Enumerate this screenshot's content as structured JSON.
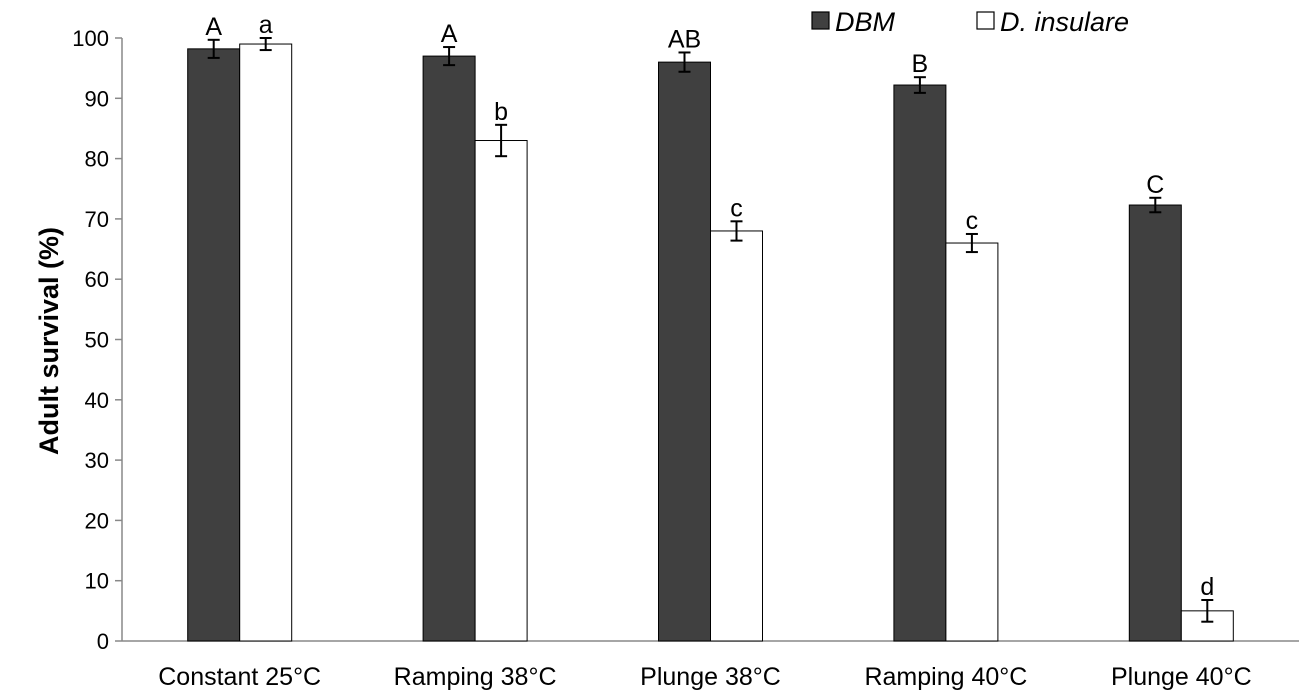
{
  "chart_data": {
    "type": "bar",
    "title": "",
    "xlabel": "",
    "ylabel": "Adult survival (%)",
    "ylim": [
      0,
      100
    ],
    "yticks": [
      0,
      10,
      20,
      30,
      40,
      50,
      60,
      70,
      80,
      90,
      100
    ],
    "grid": false,
    "legend_position": "top-right",
    "categories": [
      "Constant 25°C",
      "Ramping 38°C",
      "Plunge 38°C",
      "Ramping 40°C",
      "Plunge 40°C"
    ],
    "series": [
      {
        "name": "DBM",
        "color": "#404040",
        "values": [
          98.2,
          97.0,
          96.0,
          92.2,
          72.3
        ],
        "errors": [
          1.5,
          1.5,
          1.6,
          1.3,
          1.2
        ],
        "significance": [
          "A",
          "A",
          "AB",
          "B",
          "C"
        ]
      },
      {
        "name": "D. insulare",
        "color": "#ffffff",
        "values": [
          99.0,
          83.0,
          68.0,
          66.0,
          5.0
        ],
        "errors": [
          1.0,
          2.6,
          1.6,
          1.5,
          1.8
        ],
        "significance": [
          "a",
          "b",
          "c",
          "c",
          "d"
        ]
      }
    ]
  }
}
